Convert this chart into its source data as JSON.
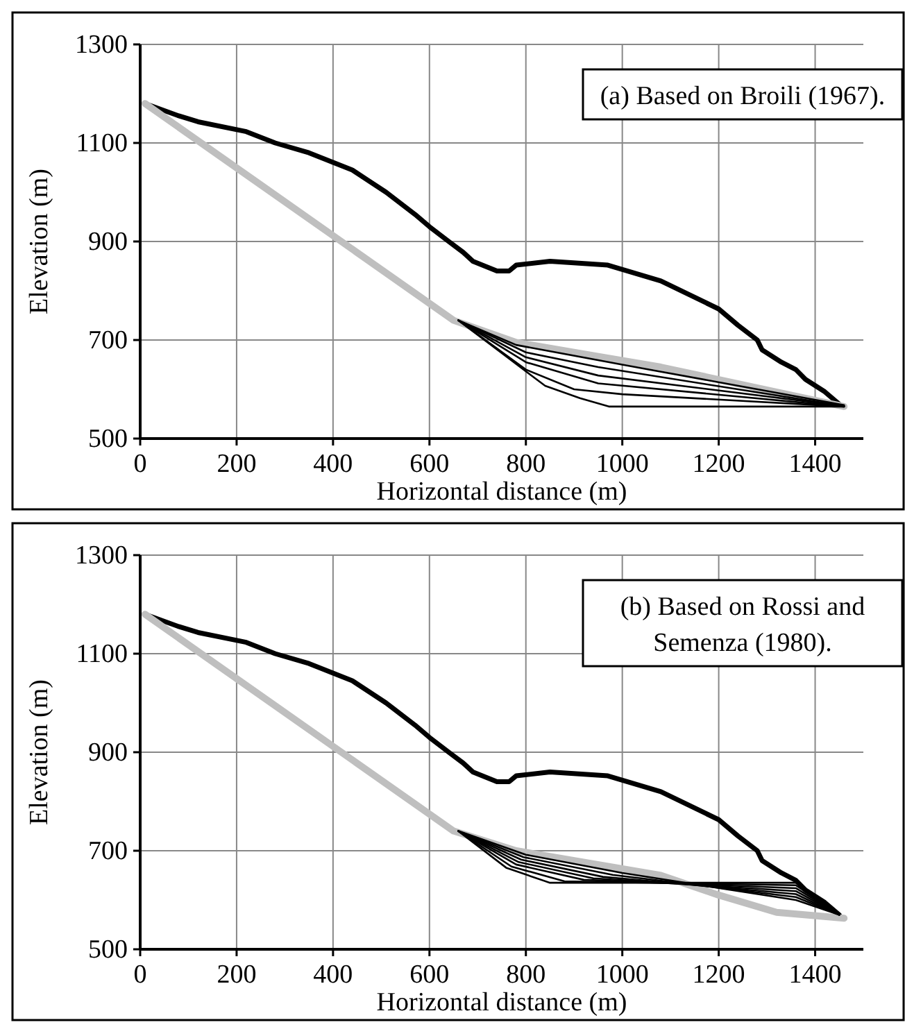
{
  "chart_data": [
    {
      "type": "line",
      "xlabel": "Horizontal distance (m)",
      "ylabel": "Elevation (m)",
      "xlim": [
        0,
        1500
      ],
      "ylim": [
        500,
        1300
      ],
      "xticks": [
        0,
        200,
        400,
        600,
        800,
        1000,
        1200,
        1400
      ],
      "yticks": [
        500,
        700,
        900,
        1100,
        1300
      ],
      "grid": true,
      "annotations": [
        "(a) Based on Broili (1967)."
      ],
      "series": [
        {
          "color": "#000000",
          "x": [
            10,
            80,
            120,
            220,
            280,
            350,
            440,
            510,
            570,
            600,
            640,
            670,
            690,
            740,
            765,
            780,
            850,
            970,
            1080,
            1200,
            1240,
            1280,
            1290,
            1330,
            1360,
            1380,
            1420,
            1450
          ],
          "values": [
            1180,
            1155,
            1143,
            1123,
            1100,
            1080,
            1045,
            1000,
            955,
            930,
            900,
            878,
            860,
            840,
            840,
            852,
            860,
            852,
            820,
            763,
            730,
            700,
            680,
            655,
            640,
            620,
            595,
            570
          ]
        },
        {
          "color": "#bfbfbf",
          "x": [
            10,
            650,
            780,
            1080,
            1460
          ],
          "values": [
            1180,
            740,
            695,
            645,
            565
          ]
        },
        {
          "color": "#000000",
          "x": [
            660,
            780,
            1000,
            1460
          ],
          "values": [
            740,
            690,
            650,
            568
          ]
        },
        {
          "color": "#000000",
          "x": [
            660,
            800,
            950,
            1460
          ],
          "values": [
            740,
            675,
            645,
            566
          ]
        },
        {
          "color": "#000000",
          "x": [
            660,
            800,
            950,
            1460
          ],
          "values": [
            740,
            665,
            628,
            566
          ]
        },
        {
          "color": "#000000",
          "x": [
            660,
            800,
            950,
            1460
          ],
          "values": [
            740,
            655,
            612,
            565
          ]
        },
        {
          "color": "#000000",
          "x": [
            660,
            800,
            900,
            1000,
            1460
          ],
          "values": [
            740,
            640,
            600,
            590,
            565
          ]
        },
        {
          "color": "#000000",
          "x": [
            660,
            840,
            912,
            972,
            1460
          ],
          "values": [
            740,
            607,
            582,
            565,
            565
          ]
        }
      ]
    },
    {
      "type": "line",
      "xlabel": "Horizontal distance (m)",
      "ylabel": "Elevation (m)",
      "xlim": [
        0,
        1500
      ],
      "ylim": [
        500,
        1300
      ],
      "xticks": [
        0,
        200,
        400,
        600,
        800,
        1000,
        1200,
        1400
      ],
      "yticks": [
        500,
        700,
        900,
        1100,
        1300
      ],
      "grid": true,
      "annotations": [
        "(b) Based on Rossi and\nSemenza (1980)."
      ],
      "series": [
        {
          "color": "#000000",
          "x": [
            10,
            80,
            120,
            220,
            280,
            350,
            440,
            510,
            570,
            600,
            640,
            670,
            690,
            740,
            765,
            780,
            850,
            970,
            1080,
            1200,
            1240,
            1280,
            1290,
            1330,
            1360,
            1380,
            1420,
            1450
          ],
          "values": [
            1180,
            1155,
            1143,
            1123,
            1100,
            1080,
            1045,
            1000,
            955,
            930,
            900,
            878,
            860,
            840,
            840,
            852,
            860,
            852,
            820,
            763,
            730,
            700,
            680,
            655,
            640,
            620,
            595,
            570
          ]
        },
        {
          "color": "#bfbfbf",
          "x": [
            10,
            650,
            780,
            1080,
            1200,
            1320,
            1460
          ],
          "values": [
            1180,
            740,
            700,
            650,
            610,
            575,
            563
          ]
        },
        {
          "color": "#000000",
          "x": [
            660,
            800,
            1000,
            1360,
            1450
          ],
          "values": [
            740,
            692,
            655,
            600,
            570
          ]
        },
        {
          "color": "#000000",
          "x": [
            660,
            795,
            980,
            1360,
            1450
          ],
          "values": [
            740,
            687,
            651,
            606,
            570
          ]
        },
        {
          "color": "#000000",
          "x": [
            660,
            790,
            960,
            1360,
            1450
          ],
          "values": [
            740,
            682,
            647,
            612,
            570
          ]
        },
        {
          "color": "#000000",
          "x": [
            660,
            785,
            940,
            1360,
            1450
          ],
          "values": [
            740,
            677,
            644,
            618,
            570
          ]
        },
        {
          "color": "#000000",
          "x": [
            660,
            780,
            920,
            1360,
            1450
          ],
          "values": [
            740,
            672,
            641,
            624,
            570
          ]
        },
        {
          "color": "#000000",
          "x": [
            660,
            770,
            880,
            1360,
            1450
          ],
          "values": [
            740,
            668,
            638,
            630,
            570
          ]
        },
        {
          "color": "#000000",
          "x": [
            660,
            760,
            850,
            1360,
            1450
          ],
          "values": [
            740,
            665,
            635,
            635,
            570
          ]
        }
      ]
    }
  ]
}
